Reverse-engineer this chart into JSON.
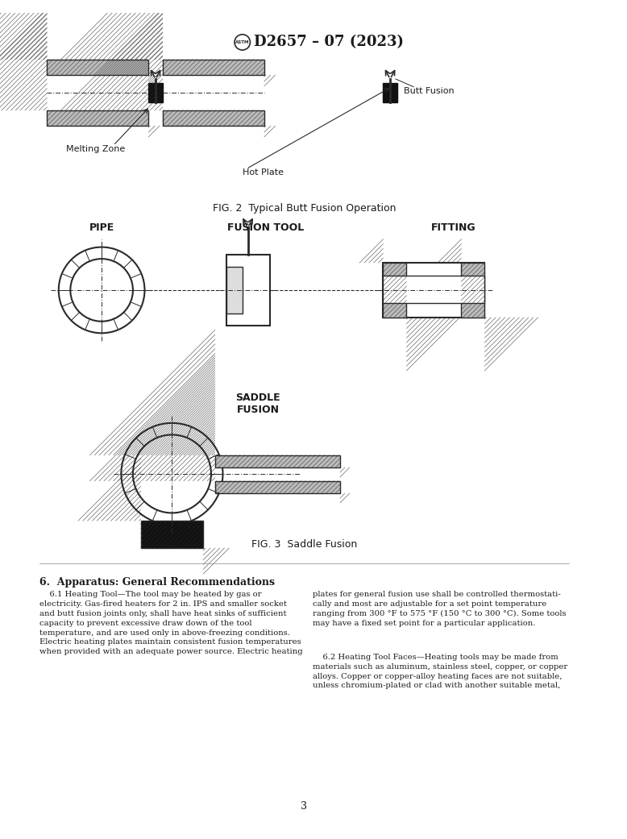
{
  "title": "D2657 – 07 (2023)",
  "fig2_caption": "FIG. 2  Typical Butt Fusion Operation",
  "fig3_caption": "FIG. 3  Saddle Fusion",
  "label_butt_fusion": "Butt Fusion",
  "label_melting_zone": "Melting Zone",
  "label_hot_plate": "Hot Plate",
  "label_pipe": "PIPE",
  "label_fusion_tool": "FUSION TOOL",
  "label_fitting": "FITTING",
  "label_saddle_fusion": "SADDLE\nFUSION",
  "section_title": "6.  Apparatus: General Recommendations",
  "para_6_1_left": "    6.1 Heating Tool—The tool may be heated by gas or\nelectricity. Gas-fired heaters for 2 in. IPS and smaller socket\nand butt fusion joints only, shall have heat sinks of sufficient\ncapacity to prevent excessive draw down of the tool\ntemperature, and are used only in above-freezing conditions.\nElectric heating plates maintain consistent fusion temperatures\nwhen provided with an adequate power source. Electric heating",
  "para_6_1_right": "plates for general fusion use shall be controlled thermostati-\ncally and most are adjustable for a set point temperature\nranging from 300 °F to 575 °F (150 °C to 300 °C). Some tools\nmay have a fixed set point for a particular application.",
  "para_6_2_right": "    6.2 Heating Tool Faces—Heating tools may be made from\nmaterials such as aluminum, stainless steel, copper, or copper\nalloys. Copper or copper-alloy heating faces are not suitable,\nunless chromium-plated or clad with another suitable metal,",
  "page_number": "3",
  "bg_color": "#ffffff",
  "text_color": "#1a1a1a",
  "line_color": "#2a2a2a"
}
